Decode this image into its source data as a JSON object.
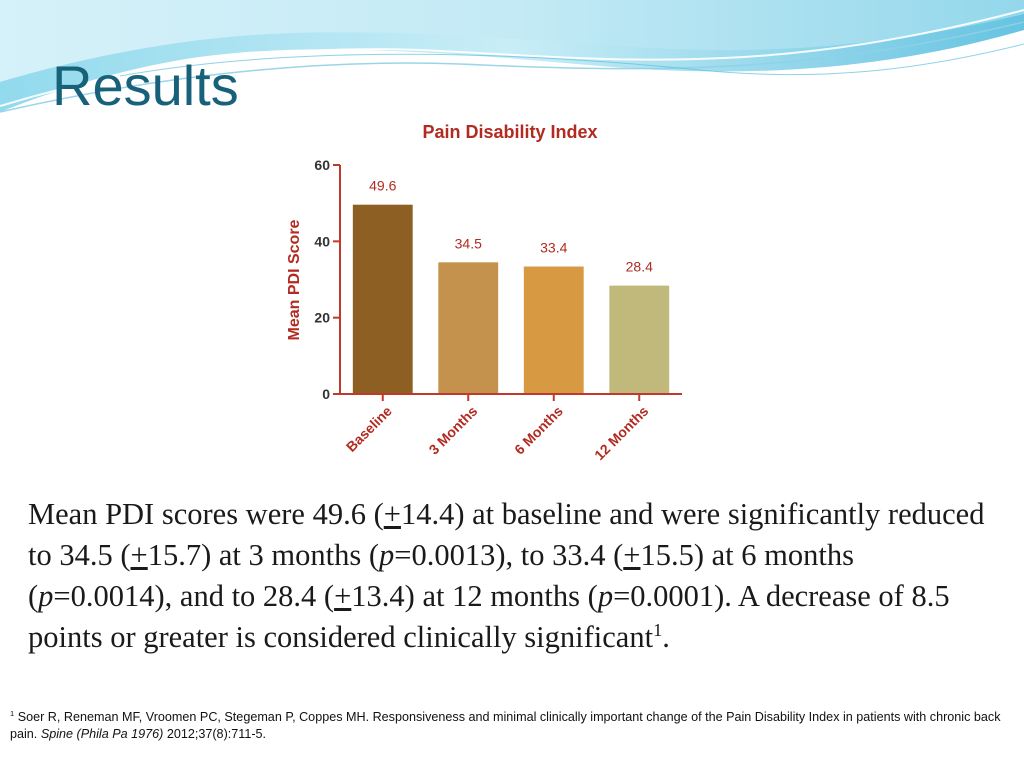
{
  "slide": {
    "title": "Results"
  },
  "theme": {
    "title_color": "#17617a",
    "axis_color": "#c0392b",
    "title_text_color": "#b22a20"
  },
  "chart_data": {
    "type": "bar",
    "title": "Pain Disability Index",
    "ylabel": "Mean PDI Score",
    "xlabel": "",
    "categories": [
      "Baseline",
      "3 Months",
      "6 Months",
      "12 Months"
    ],
    "values": [
      49.6,
      34.5,
      33.4,
      28.4
    ],
    "value_labels": [
      "49.6",
      "34.5",
      "33.4",
      "28.4"
    ],
    "colors": [
      "#8e5f22",
      "#c4924c",
      "#d79a42",
      "#c1b97c"
    ],
    "ylim": [
      0,
      60
    ],
    "yticks": [
      0,
      20,
      40,
      60
    ],
    "ytick_labels": [
      "0",
      "20",
      "40",
      "60"
    ],
    "grid": false,
    "legend": "none"
  },
  "body": {
    "p1": "Mean PDI scores were 49.6 (",
    "pm1": "+",
    "p2": "14.4) at baseline and were significantly reduced to 34.5 (",
    "pm2": "+",
    "p3": "15.7) at 3 months (",
    "pv1": "p",
    "p4": "=0.0013), to 33.4 (",
    "pm3": "+",
    "p5": "15.5) at 6 months (",
    "pv2": "p",
    "p6": "=0.0014), and to 28.4 (",
    "pm4": "+",
    "p7": "13.4) at 12 months (",
    "pv3": "p",
    "p8": "=0.0001). A decrease of 8.5 points or greater is considered clinically significant",
    "sup": "1",
    "p9": "."
  },
  "footnote": {
    "marker": "1",
    "text1": " Soer R, Reneman MF, Vroomen PC, Stegeman P, Coppes MH. Responsiveness and minimal clinically important change of the Pain Disability Index in patients with chronic back pain. ",
    "journal": "Spine (Phila Pa 1976)",
    "text2": " 2012;37(8):711-5."
  }
}
